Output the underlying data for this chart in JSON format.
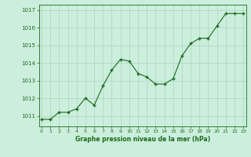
{
  "x": [
    0,
    1,
    2,
    3,
    4,
    5,
    6,
    7,
    8,
    9,
    10,
    11,
    12,
    13,
    14,
    15,
    16,
    17,
    18,
    19,
    20,
    21,
    22,
    23
  ],
  "y": [
    1010.8,
    1010.8,
    1011.2,
    1011.2,
    1011.4,
    1012.0,
    1011.6,
    1012.7,
    1013.6,
    1014.2,
    1014.1,
    1013.4,
    1013.2,
    1012.8,
    1012.8,
    1013.1,
    1014.4,
    1015.1,
    1015.4,
    1015.4,
    1016.1,
    1016.8,
    1016.8,
    1016.8
  ],
  "line_color": "#1a6b1a",
  "marker_color": "#1a6b1a",
  "bg_color": "#cceedd",
  "grid_color": "#b0d8c8",
  "border_color": "#1a6b1a",
  "title": "Graphe pression niveau de la mer (hPa)",
  "title_color": "#1a6b1a",
  "yticks": [
    1011,
    1012,
    1013,
    1014,
    1015,
    1016,
    1017
  ],
  "xticks": [
    0,
    1,
    2,
    3,
    4,
    5,
    6,
    7,
    8,
    9,
    10,
    11,
    12,
    13,
    14,
    15,
    16,
    17,
    18,
    19,
    20,
    21,
    22,
    23
  ],
  "ylim": [
    1010.4,
    1017.3
  ],
  "xlim": [
    -0.3,
    23.3
  ],
  "figsize": [
    3.2,
    2.0
  ],
  "dpi": 100
}
